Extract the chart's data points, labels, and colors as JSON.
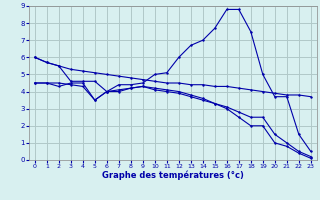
{
  "title": "Graphe des températures (°c)",
  "bg_color": "#d8f0f0",
  "grid_color": "#b0c8c8",
  "line_color": "#0000aa",
  "xlim": [
    -0.5,
    23.5
  ],
  "ylim": [
    0,
    9
  ],
  "xticks": [
    0,
    1,
    2,
    3,
    4,
    5,
    6,
    7,
    8,
    9,
    10,
    11,
    12,
    13,
    14,
    15,
    16,
    17,
    18,
    19,
    20,
    21,
    22,
    23
  ],
  "yticks": [
    0,
    1,
    2,
    3,
    4,
    5,
    6,
    7,
    8,
    9
  ],
  "line1_x": [
    0,
    1,
    2,
    3,
    4,
    5,
    6,
    7,
    8,
    9,
    10,
    11,
    12,
    13,
    14,
    15,
    16,
    17,
    18,
    19,
    20,
    21,
    22,
    23
  ],
  "line1_y": [
    6.0,
    5.7,
    5.5,
    4.6,
    4.6,
    4.6,
    4.0,
    4.4,
    4.4,
    4.5,
    5.0,
    5.1,
    6.0,
    6.7,
    7.0,
    7.7,
    8.8,
    8.8,
    7.5,
    5.0,
    3.7,
    3.7,
    1.5,
    0.5
  ],
  "line2_x": [
    0,
    1,
    2,
    3,
    4,
    5,
    6,
    7,
    8,
    9,
    10,
    11,
    12,
    13,
    14,
    15,
    16,
    17,
    18,
    19,
    20,
    21,
    22,
    23
  ],
  "line2_y": [
    6.0,
    5.7,
    5.5,
    5.3,
    5.2,
    5.1,
    5.0,
    4.9,
    4.8,
    4.7,
    4.6,
    4.5,
    4.5,
    4.4,
    4.4,
    4.3,
    4.3,
    4.2,
    4.1,
    4.0,
    3.9,
    3.8,
    3.8,
    3.7
  ],
  "line3_x": [
    0,
    1,
    2,
    3,
    4,
    5,
    6,
    7,
    8,
    9,
    10,
    11,
    12,
    13,
    14,
    15,
    16,
    17,
    18,
    19,
    20,
    21,
    22,
    23
  ],
  "line3_y": [
    4.5,
    4.5,
    4.5,
    4.4,
    4.3,
    3.5,
    4.0,
    4.1,
    4.2,
    4.3,
    4.2,
    4.1,
    4.0,
    3.8,
    3.6,
    3.3,
    3.1,
    2.8,
    2.5,
    2.5,
    1.5,
    1.0,
    0.5,
    0.2
  ],
  "line4_x": [
    0,
    1,
    2,
    3,
    4,
    5,
    6,
    7,
    8,
    9,
    10,
    11,
    12,
    13,
    14,
    15,
    16,
    17,
    18,
    19,
    20,
    21,
    22,
    23
  ],
  "line4_y": [
    4.5,
    4.5,
    4.3,
    4.5,
    4.5,
    3.5,
    4.0,
    4.0,
    4.2,
    4.3,
    4.1,
    4.0,
    3.9,
    3.7,
    3.5,
    3.3,
    3.0,
    2.5,
    2.0,
    2.0,
    1.0,
    0.8,
    0.4,
    0.1
  ],
  "xlabel_fontsize": 6.0,
  "tick_fontsize": 4.5,
  "linewidth": 0.8,
  "markersize": 2.0
}
